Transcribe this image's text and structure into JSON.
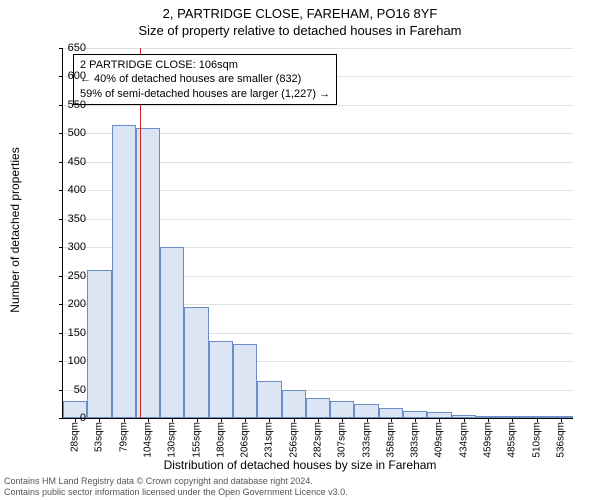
{
  "header": {
    "address": "2, PARTRIDGE CLOSE, FAREHAM, PO16 8YF",
    "subtitle": "Size of property relative to detached houses in Fareham"
  },
  "axes": {
    "y_label": "Number of detached properties",
    "x_label": "Distribution of detached houses by size in Fareham",
    "y_max": 650,
    "y_ticks": [
      0,
      50,
      100,
      150,
      200,
      250,
      300,
      350,
      400,
      450,
      500,
      550,
      600,
      650
    ],
    "x_labels": [
      "28sqm",
      "53sqm",
      "79sqm",
      "104sqm",
      "130sqm",
      "155sqm",
      "180sqm",
      "206sqm",
      "231sqm",
      "256sqm",
      "282sqm",
      "307sqm",
      "333sqm",
      "358sqm",
      "383sqm",
      "409sqm",
      "434sqm",
      "459sqm",
      "485sqm",
      "510sqm",
      "536sqm"
    ]
  },
  "chart": {
    "type": "histogram",
    "bar_fill": "#dbe5f4",
    "bar_border": "#6b8ec4",
    "grid_color": "#e0e0e0",
    "background_color": "#ffffff",
    "marker_color": "#d02020",
    "values": [
      30,
      260,
      515,
      510,
      300,
      195,
      135,
      130,
      65,
      50,
      35,
      30,
      25,
      18,
      12,
      10,
      5,
      4,
      3,
      3,
      2
    ]
  },
  "marker": {
    "position_sqm": 106,
    "x_min": 28,
    "x_max": 548
  },
  "infobox": {
    "line1": "2 PARTRIDGE CLOSE: 106sqm",
    "line2": "← 40% of detached houses are smaller (832)",
    "line3": "59% of semi-detached houses are larger (1,227) →"
  },
  "footer": {
    "line1": "Contains HM Land Registry data © Crown copyright and database right 2024.",
    "line2": "Contains public sector information licensed under the Open Government Licence v3.0."
  }
}
